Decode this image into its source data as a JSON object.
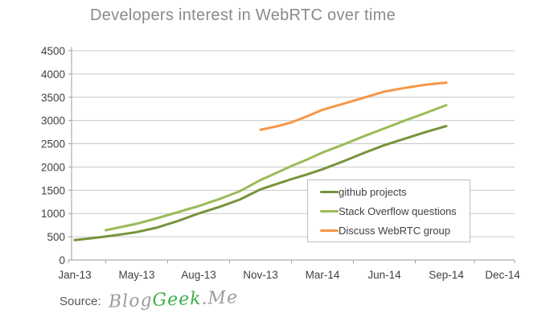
{
  "title": {
    "text": "Developers interest in WebRTC over time",
    "color": "#8a8a8a"
  },
  "source": {
    "label": "Source:",
    "logo": {
      "part1": "Blog",
      "part2": "Geek",
      "part3": ".Me",
      "gray": "#9b9b9b",
      "green": "#3eb049"
    }
  },
  "chart_data": {
    "type": "line",
    "title": "Developers interest in WebRTC over time",
    "xlabel": "",
    "ylabel": "",
    "ylim": [
      0,
      4500
    ],
    "ytick_step": 500,
    "y_ticks": [
      0,
      500,
      1000,
      1500,
      2000,
      2500,
      3000,
      3500,
      4000,
      4500
    ],
    "grid": true,
    "legend_position": "inside-right-bottom",
    "x_labels": [
      "Jan-13",
      "May-13",
      "Aug-13",
      "Nov-13",
      "Mar-14",
      "Jun-14",
      "Sep-14",
      "Dec-14"
    ],
    "x_label_month_index": [
      0,
      4,
      7,
      10,
      14,
      17,
      20,
      23
    ],
    "months": [
      "Jan-13",
      "Feb-13",
      "Mar-13",
      "Apr-13",
      "May-13",
      "Jun-13",
      "Jul-13",
      "Aug-13",
      "Sep-13",
      "Oct-13",
      "Nov-13",
      "Dec-13",
      "Jan-14",
      "Feb-14",
      "Mar-14",
      "Apr-14",
      "May-14",
      "Jun-14",
      "Jul-14",
      "Aug-14",
      "Sep-14"
    ],
    "series": [
      {
        "name": "github projects",
        "color": "#77933C",
        "start_month": "Jan-13",
        "start_month_index": 0,
        "values": [
          430,
          465,
          505,
          550,
          600,
          700,
          840,
          1000,
          1140,
          1300,
          1520,
          1630,
          1740,
          1840,
          1950,
          2120,
          2300,
          2470,
          2610,
          2750,
          2880
        ]
      },
      {
        "name": "Stack Overflow questions",
        "color": "#9BBB59",
        "start_month": "Mar-13",
        "start_month_index": 2,
        "values": [
          640,
          710,
          780,
          900,
          1030,
          1160,
          1310,
          1480,
          1720,
          1870,
          2020,
          2160,
          2310,
          2480,
          2660,
          2830,
          3000,
          3160,
          3330
        ]
      },
      {
        "name": "Discuss WebRTC group",
        "color": "#F79646",
        "start_month": "Nov-13",
        "start_month_index": 10,
        "values": [
          2800,
          2870,
          2960,
          3090,
          3230,
          3360,
          3490,
          3620,
          3700,
          3770,
          3815
        ]
      }
    ],
    "style": {
      "axis_color": "#9e9e9e",
      "grid_color": "#c8c8c8",
      "tick_label_color": "#3f3f3f"
    }
  }
}
